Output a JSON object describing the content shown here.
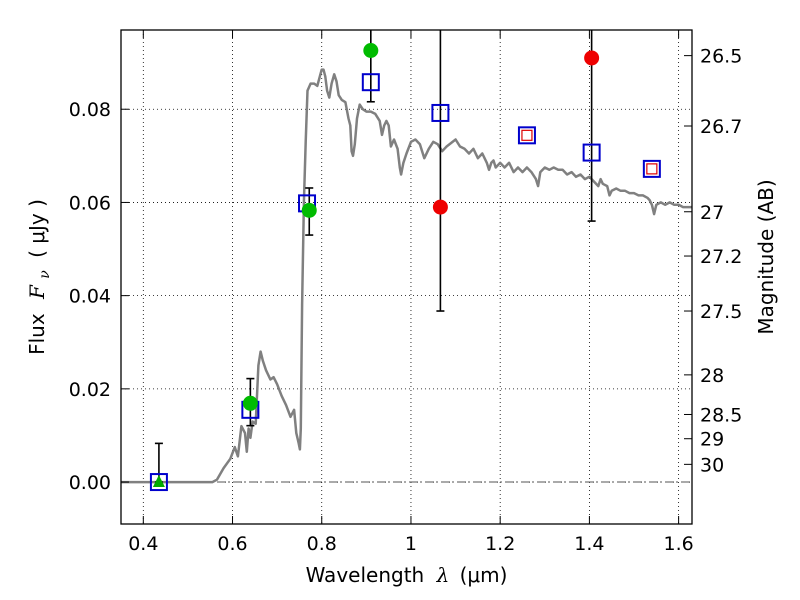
{
  "chart_data": {
    "type": "scatter",
    "xlabel": "Wavelength",
    "xlabel_symbol": "λ",
    "xlabel_unit": "(μm)",
    "ylabel": "Flux",
    "ylabel_symbol": "F",
    "ylabel_subscript": "ν",
    "ylabel_unit": "( μJy )",
    "y2label": "Magnitude (AB)",
    "xlim": [
      0.35,
      1.63
    ],
    "ylim": [
      -0.009,
      0.097
    ],
    "grid": true,
    "x_ticks": [
      {
        "value": 0.4,
        "label": "0.4"
      },
      {
        "value": 0.6,
        "label": "0.6"
      },
      {
        "value": 0.8,
        "label": "0.8"
      },
      {
        "value": 1.0,
        "label": "1"
      },
      {
        "value": 1.2,
        "label": "1.2"
      },
      {
        "value": 1.4,
        "label": "1.4"
      },
      {
        "value": 1.6,
        "label": "1.6"
      }
    ],
    "y_ticks": [
      {
        "value": 0.0,
        "label": "0.00"
      },
      {
        "value": 0.02,
        "label": "0.02"
      },
      {
        "value": 0.04,
        "label": "0.04"
      },
      {
        "value": 0.06,
        "label": "0.06"
      },
      {
        "value": 0.08,
        "label": "0.08"
      }
    ],
    "y2_ticks": [
      {
        "flux": 0.0915,
        "label": "26.5"
      },
      {
        "flux": 0.0764,
        "label": "26.7"
      },
      {
        "flux": 0.058,
        "label": "27"
      },
      {
        "flux": 0.0485,
        "label": "27.2"
      },
      {
        "flux": 0.0367,
        "label": "27.5"
      },
      {
        "flux": 0.023,
        "label": "28"
      },
      {
        "flux": 0.0145,
        "label": "28.5"
      },
      {
        "flux": 0.0093,
        "label": "29"
      },
      {
        "flux": 0.0038,
        "label": "30"
      }
    ],
    "template_sed": {
      "color": "#808080",
      "points": [
        [
          0.35,
          0.0
        ],
        [
          0.555,
          0.0
        ],
        [
          0.565,
          0.0005
        ],
        [
          0.58,
          0.003
        ],
        [
          0.595,
          0.005
        ],
        [
          0.605,
          0.0075
        ],
        [
          0.612,
          0.0055
        ],
        [
          0.62,
          0.012
        ],
        [
          0.628,
          0.0105
        ],
        [
          0.632,
          0.0065
        ],
        [
          0.636,
          0.0115
        ],
        [
          0.64,
          0.0095
        ],
        [
          0.645,
          0.013
        ],
        [
          0.652,
          0.0125
        ],
        [
          0.658,
          0.025
        ],
        [
          0.663,
          0.028
        ],
        [
          0.668,
          0.026
        ],
        [
          0.675,
          0.024
        ],
        [
          0.685,
          0.022
        ],
        [
          0.692,
          0.0225
        ],
        [
          0.7,
          0.021
        ],
        [
          0.71,
          0.0185
        ],
        [
          0.72,
          0.0165
        ],
        [
          0.73,
          0.014
        ],
        [
          0.738,
          0.0155
        ],
        [
          0.743,
          0.0105
        ],
        [
          0.748,
          0.0085
        ],
        [
          0.751,
          0.007
        ],
        [
          0.753,
          0.0115
        ],
        [
          0.756,
          0.038
        ],
        [
          0.76,
          0.06
        ],
        [
          0.764,
          0.073
        ],
        [
          0.768,
          0.084
        ],
        [
          0.775,
          0.0855
        ],
        [
          0.783,
          0.0855
        ],
        [
          0.79,
          0.085
        ],
        [
          0.797,
          0.0875
        ],
        [
          0.8,
          0.0885
        ],
        [
          0.804,
          0.0885
        ],
        [
          0.808,
          0.087
        ],
        [
          0.812,
          0.084
        ],
        [
          0.817,
          0.0825
        ],
        [
          0.822,
          0.0855
        ],
        [
          0.828,
          0.0875
        ],
        [
          0.833,
          0.086
        ],
        [
          0.838,
          0.083
        ],
        [
          0.845,
          0.082
        ],
        [
          0.853,
          0.0815
        ],
        [
          0.86,
          0.078
        ],
        [
          0.864,
          0.0765
        ],
        [
          0.867,
          0.071
        ],
        [
          0.87,
          0.07
        ],
        [
          0.874,
          0.0725
        ],
        [
          0.879,
          0.078
        ],
        [
          0.885,
          0.081
        ],
        [
          0.892,
          0.08
        ],
        [
          0.9,
          0.0795
        ],
        [
          0.91,
          0.0795
        ],
        [
          0.92,
          0.079
        ],
        [
          0.93,
          0.0775
        ],
        [
          0.935,
          0.0745
        ],
        [
          0.94,
          0.0765
        ],
        [
          0.945,
          0.0775
        ],
        [
          0.95,
          0.0765
        ],
        [
          0.955,
          0.072
        ],
        [
          0.962,
          0.0735
        ],
        [
          0.97,
          0.0715
        ],
        [
          0.975,
          0.0675
        ],
        [
          0.978,
          0.066
        ],
        [
          0.983,
          0.0685
        ],
        [
          0.99,
          0.0705
        ],
        [
          1.0,
          0.073
        ],
        [
          1.01,
          0.0735
        ],
        [
          1.02,
          0.0725
        ],
        [
          1.03,
          0.0695
        ],
        [
          1.04,
          0.0715
        ],
        [
          1.05,
          0.073
        ],
        [
          1.06,
          0.0725
        ],
        [
          1.07,
          0.071
        ],
        [
          1.08,
          0.072
        ],
        [
          1.1,
          0.0735
        ],
        [
          1.11,
          0.072
        ],
        [
          1.12,
          0.0715
        ],
        [
          1.13,
          0.0705
        ],
        [
          1.14,
          0.0715
        ],
        [
          1.15,
          0.0695
        ],
        [
          1.16,
          0.0705
        ],
        [
          1.17,
          0.0685
        ],
        [
          1.175,
          0.067
        ],
        [
          1.18,
          0.0685
        ],
        [
          1.185,
          0.069
        ],
        [
          1.19,
          0.0675
        ],
        [
          1.2,
          0.0685
        ],
        [
          1.21,
          0.0675
        ],
        [
          1.22,
          0.0685
        ],
        [
          1.23,
          0.0665
        ],
        [
          1.24,
          0.0675
        ],
        [
          1.25,
          0.0665
        ],
        [
          1.26,
          0.0675
        ],
        [
          1.27,
          0.0665
        ],
        [
          1.28,
          0.065
        ],
        [
          1.285,
          0.0635
        ],
        [
          1.29,
          0.0665
        ],
        [
          1.3,
          0.0675
        ],
        [
          1.31,
          0.067
        ],
        [
          1.32,
          0.0675
        ],
        [
          1.33,
          0.067
        ],
        [
          1.34,
          0.067
        ],
        [
          1.35,
          0.066
        ],
        [
          1.36,
          0.0665
        ],
        [
          1.37,
          0.0655
        ],
        [
          1.38,
          0.066
        ],
        [
          1.39,
          0.065
        ],
        [
          1.4,
          0.0655
        ],
        [
          1.41,
          0.0645
        ],
        [
          1.42,
          0.0635
        ],
        [
          1.425,
          0.065
        ],
        [
          1.43,
          0.064
        ],
        [
          1.44,
          0.0635
        ],
        [
          1.445,
          0.0615
        ],
        [
          1.45,
          0.0625
        ],
        [
          1.46,
          0.063
        ],
        [
          1.47,
          0.0625
        ],
        [
          1.48,
          0.0625
        ],
        [
          1.49,
          0.062
        ],
        [
          1.5,
          0.062
        ],
        [
          1.51,
          0.0615
        ],
        [
          1.52,
          0.0615
        ],
        [
          1.53,
          0.061
        ],
        [
          1.535,
          0.0605
        ],
        [
          1.54,
          0.0595
        ],
        [
          1.545,
          0.0575
        ],
        [
          1.55,
          0.0595
        ],
        [
          1.56,
          0.06
        ],
        [
          1.57,
          0.0595
        ],
        [
          1.58,
          0.06
        ],
        [
          1.59,
          0.0595
        ],
        [
          1.6,
          0.0595
        ],
        [
          1.61,
          0.059
        ],
        [
          1.62,
          0.059
        ],
        [
          1.63,
          0.059
        ]
      ]
    },
    "model_squares": {
      "color": "#0000cc",
      "points": [
        {
          "x": 0.435,
          "y": 0.0
        },
        {
          "x": 0.64,
          "y": 0.0155
        },
        {
          "x": 0.767,
          "y": 0.0598
        },
        {
          "x": 0.91,
          "y": 0.0858
        },
        {
          "x": 1.066,
          "y": 0.0792
        },
        {
          "x": 1.405,
          "y": 0.0707
        },
        {
          "x": 1.26,
          "y": 0.0744,
          "inner": true
        },
        {
          "x": 1.54,
          "y": 0.0672,
          "inner": true
        }
      ],
      "inner_color": "#dd0000"
    },
    "green_points": {
      "color": "#00bb00",
      "points": [
        {
          "x": 0.64,
          "y": 0.0169,
          "err_lo": 0.0048,
          "err_hi": 0.0053
        },
        {
          "x": 0.772,
          "y": 0.0583,
          "err_lo": 0.0053,
          "err_hi": 0.0048
        },
        {
          "x": 0.91,
          "y": 0.0926,
          "err_lo": 0.011,
          "err_hi": 0.006
        }
      ]
    },
    "green_triangle": {
      "color": "#00aa00",
      "x": 0.435,
      "y": 0.0,
      "err_lo": 0.0,
      "err_hi": 0.0083
    },
    "red_points": {
      "color": "#ee0000",
      "points": [
        {
          "x": 1.066,
          "y": 0.059,
          "err_lo": 0.0223,
          "err_hi": 0.04
        },
        {
          "x": 1.405,
          "y": 0.091,
          "err_lo": 0.035,
          "err_hi": 0.01
        }
      ]
    }
  }
}
